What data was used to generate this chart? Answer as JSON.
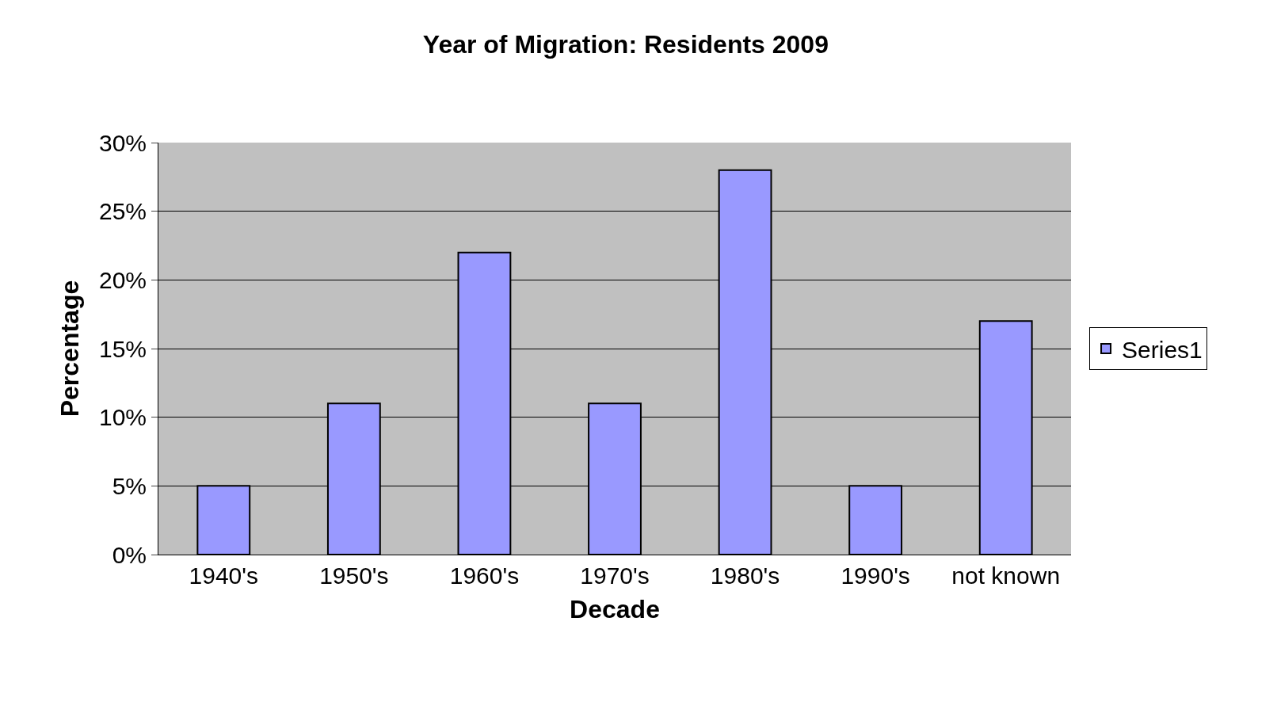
{
  "chart_data": {
    "type": "bar",
    "title": "Year of Migration: Residents 2009",
    "xlabel": "Decade",
    "ylabel": "Percentage",
    "categories": [
      "1940's",
      "1950's",
      "1960's",
      "1970's",
      "1980's",
      "1990's",
      "not known"
    ],
    "series": [
      {
        "name": "Series1",
        "color": "#9999ff",
        "values": [
          5,
          11,
          22,
          11,
          28,
          5,
          17
        ]
      }
    ],
    "ylim": [
      0,
      30
    ],
    "yticks": [
      {
        "value": 0,
        "label": "0%"
      },
      {
        "value": 5,
        "label": "5%"
      },
      {
        "value": 10,
        "label": "10%"
      },
      {
        "value": 15,
        "label": "15%"
      },
      {
        "value": 20,
        "label": "20%"
      },
      {
        "value": 25,
        "label": "25%"
      },
      {
        "value": 30,
        "label": "30%"
      }
    ],
    "grid": "y",
    "legend": "right"
  }
}
